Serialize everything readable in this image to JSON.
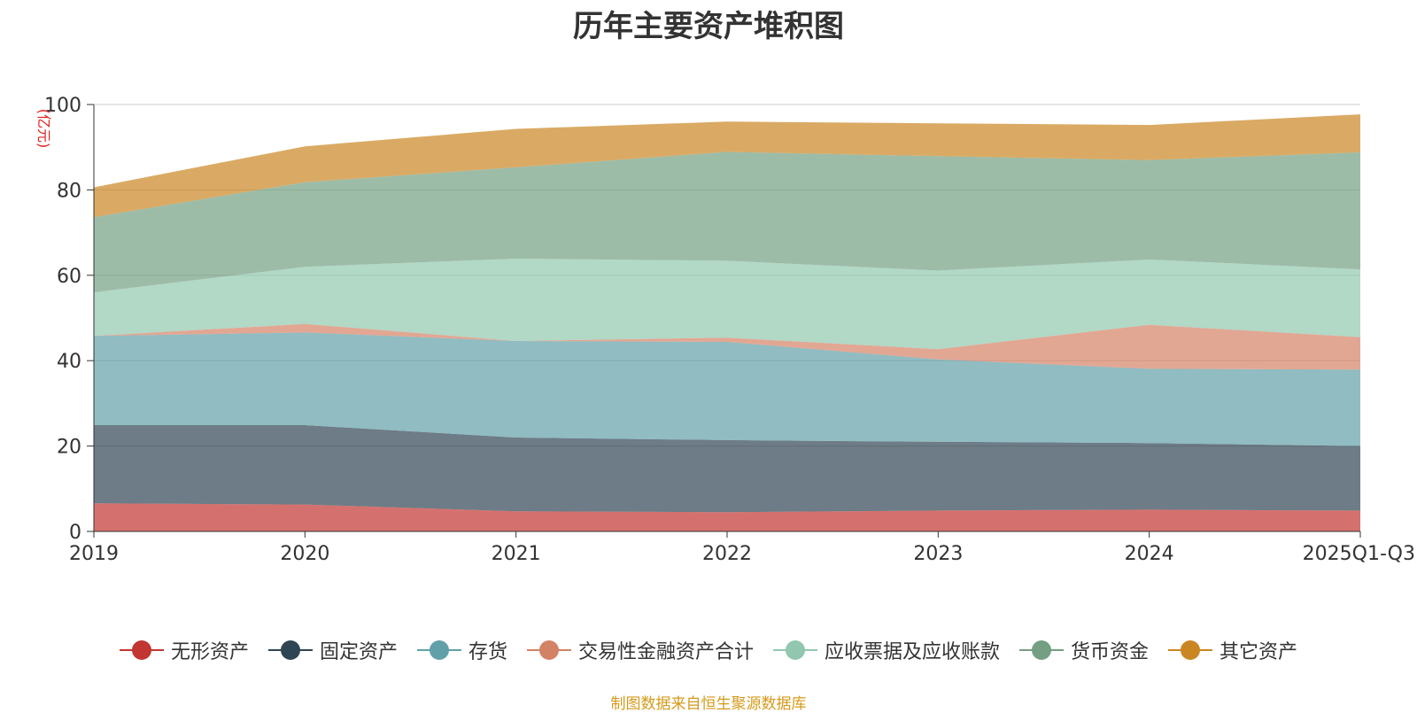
{
  "chart_data": {
    "type": "area",
    "title": "历年主要资产堆积图",
    "ylabel": "(亿元)",
    "xlabel": "",
    "x": [
      "2019",
      "2020",
      "2021",
      "2022",
      "2023",
      "2024",
      "2025Q1-Q3"
    ],
    "ylim": [
      0,
      100
    ],
    "yticks": [
      "0",
      "20",
      "40",
      "60",
      "80",
      "100"
    ],
    "stacked": true,
    "grid": true,
    "legend_position": "bottom",
    "series": [
      {
        "name": "无形资产",
        "color": "#c23531",
        "values": [
          6.6,
          6.3,
          4.7,
          4.5,
          4.9,
          5.1,
          4.9
        ]
      },
      {
        "name": "固定资产",
        "color": "#2f4554",
        "values": [
          18.3,
          18.6,
          17.3,
          16.9,
          16.1,
          15.6,
          15.1
        ]
      },
      {
        "name": "存货",
        "color": "#61a0a8",
        "values": [
          20.9,
          21.7,
          22.6,
          23.0,
          19.3,
          17.4,
          17.9
        ]
      },
      {
        "name": "交易性金融资产合计",
        "color": "#d48265",
        "values": [
          0,
          2.0,
          0,
          1.0,
          2.4,
          10.3,
          7.6
        ]
      },
      {
        "name": "应收票据及应收账款",
        "color": "#91c7ae",
        "values": [
          10.2,
          13.4,
          19.3,
          18.0,
          18.4,
          15.3,
          15.9
        ]
      },
      {
        "name": "货币资金",
        "color": "#749f83",
        "values": [
          17.6,
          19.8,
          21.4,
          25.5,
          26.8,
          23.3,
          27.4
        ]
      },
      {
        "name": "其它资产",
        "color": "#ca8622",
        "values": [
          7.0,
          8.4,
          9.0,
          7.1,
          7.7,
          8.2,
          8.9
        ]
      }
    ],
    "source_note": "制图数据来自恒生聚源数据库"
  }
}
